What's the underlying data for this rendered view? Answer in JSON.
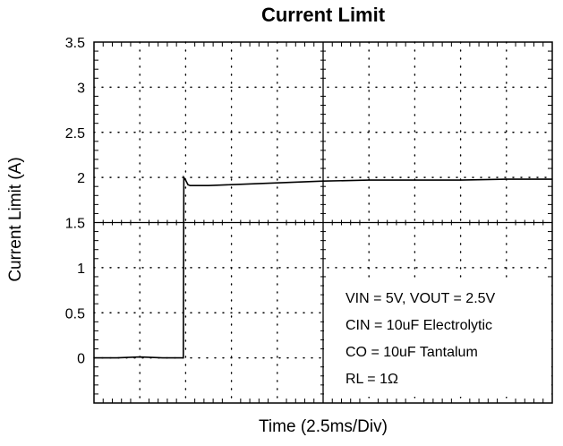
{
  "chart_data": {
    "type": "line",
    "title": "Current Limit",
    "xlabel": "Time (2.5ms/Div)",
    "ylabel": "Current Limit (A)",
    "ylim": [
      -0.5,
      3.5
    ],
    "xlim": [
      0,
      10
    ],
    "x_divisions": 10,
    "y_ticks": [
      3.5,
      3,
      2.5,
      2,
      1.5,
      1,
      0.5,
      0
    ],
    "y_tick_labels": [
      "3.5",
      "3",
      "2.5",
      "2",
      "1.5",
      "1",
      "0.5",
      "0"
    ],
    "grid": true,
    "series": [
      {
        "x": [
          0,
          0.5,
          1,
          1.5,
          1.95,
          1.96,
          2.0,
          2.05,
          2.1,
          2.5,
          3,
          4,
          5,
          6,
          7,
          8,
          9,
          10
        ],
        "y": [
          0.0,
          0.0,
          0.01,
          0.0,
          0.0,
          2.0,
          1.97,
          1.92,
          1.91,
          1.91,
          1.92,
          1.94,
          1.96,
          1.97,
          1.97,
          1.97,
          1.98,
          1.98
        ]
      }
    ],
    "annotations": [
      "VIN = 5V, VOUT = 2.5V",
      "CIN = 10uF Electrolytic",
      "CO = 10uF Tantalum",
      "RL = 1Ω"
    ],
    "colors": {
      "trace": "#000000",
      "grid": "#000000",
      "background": "#ffffff"
    }
  }
}
